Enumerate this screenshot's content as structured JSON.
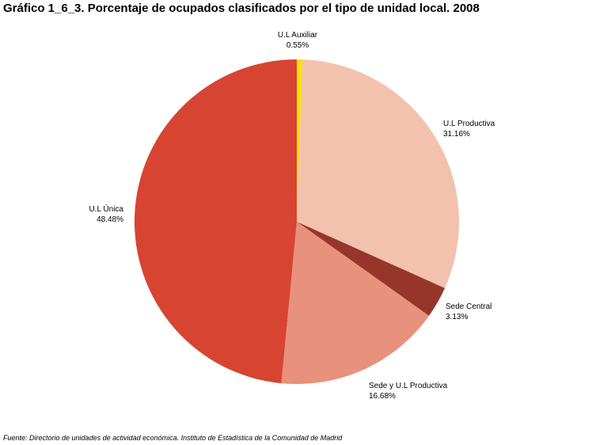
{
  "title": "Gráfico 1_6_3. Porcentaje de ocupados clasificados por el tipo de unidad local. 2008",
  "source": "Fuente: Directorio de unidades de actividad económica. Instituto de Estadística de la Comunidad de Madrid",
  "chart_data": {
    "type": "pie",
    "title": "Gráfico 1_6_3. Porcentaje de ocupados clasificados por el tipo de unidad local. 2008",
    "start": "12 o'clock, clockwise",
    "slices": [
      {
        "name": "U.L Auxiliar",
        "value": 0.55,
        "label": "0.55%",
        "color": "#FFE000"
      },
      {
        "name": "U.L Productiva",
        "value": 31.16,
        "label": "31.16%",
        "color": "#F2C2AE"
      },
      {
        "name": "Sede Central",
        "value": 3.13,
        "label": "3.13%",
        "color": "#96362A"
      },
      {
        "name": "Sede y U.L Productiva",
        "value": 16.68,
        "label": "16.68%",
        "color": "#E8917C"
      },
      {
        "name": "U.L Única",
        "value": 48.48,
        "label": "48.48%",
        "color": "#D84432"
      }
    ]
  }
}
